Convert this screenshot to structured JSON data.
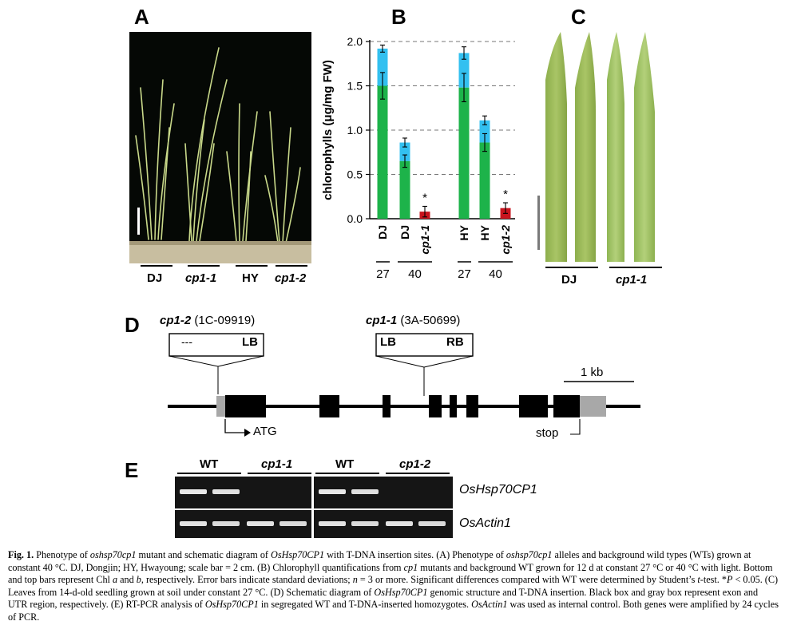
{
  "panels": {
    "a": "A",
    "b": "B",
    "c": "C",
    "d": "D",
    "e": "E"
  },
  "panelA": {
    "groups": [
      "DJ",
      "cp1-1",
      "HY",
      "cp1-2"
    ]
  },
  "chart_data": {
    "type": "bar",
    "ylabel": "chlorophylls (μg/mg FW)",
    "ylim": [
      0,
      2.0
    ],
    "yticks": [
      "0.0",
      "0.5",
      "1.0",
      "1.5",
      "2.0"
    ],
    "grid": "dashed horizontal",
    "categories": [
      "DJ",
      "DJ",
      "cp1-1",
      "HY",
      "HY",
      "cp1-2"
    ],
    "temperature_groups": [
      {
        "label": "27",
        "members": [
          0
        ]
      },
      {
        "label": "40",
        "members": [
          1,
          2
        ]
      },
      {
        "label": "27",
        "members": [
          3
        ]
      },
      {
        "label": "40",
        "members": [
          4,
          5
        ]
      }
    ],
    "series": [
      {
        "name": "Chl a",
        "color": "#1db34a",
        "values": [
          1.5,
          0.65,
          0.08,
          1.48,
          0.86,
          0.12
        ],
        "err": [
          0.15,
          0.07,
          0.06,
          0.16,
          0.1,
          0.06
        ]
      },
      {
        "name": "Chl a+b",
        "color": "#33c0f0",
        "values": [
          1.92,
          0.86,
          0.08,
          1.87,
          1.11,
          0.12
        ],
        "err": [
          0.04,
          0.05,
          0.0,
          0.07,
          0.05,
          0.0
        ]
      }
    ],
    "significance": [
      "",
      "",
      "*",
      "",
      "",
      "*"
    ],
    "mutant_color": "#c8141e"
  },
  "panelC": {
    "groups": [
      "DJ",
      "cp1-1"
    ]
  },
  "panelD": {
    "left_insert": {
      "allele": "cp1-2",
      "id": "(1C-09919)",
      "left": "---",
      "right": "LB"
    },
    "right_insert": {
      "allele": "cp1-1",
      "id": "(3A-50699)",
      "left": "LB",
      "right": "RB"
    },
    "scale": "1 kb",
    "atg": "ATG",
    "stop": "stop"
  },
  "panelE": {
    "headers": [
      "WT",
      "cp1-1",
      "WT",
      "cp1-2"
    ],
    "genes": [
      "OsHsp70CP1",
      "OsActin1"
    ]
  },
  "caption": {
    "fig": "Fig. 1.",
    "parts": [
      {
        "t": " Phenotype of ",
        "i": false
      },
      {
        "t": "oshsp70cp1",
        "i": true
      },
      {
        "t": " mutant and schematic diagram of ",
        "i": false
      },
      {
        "t": "OsHsp70CP1",
        "i": true
      },
      {
        "t": " with T-DNA insertion sites. (A) Phenotype of ",
        "i": false
      },
      {
        "t": "oshsp70cp1",
        "i": true
      },
      {
        "t": " alleles and background wild types (WTs) grown at constant 40 °C. DJ, Dongjin; HY, Hwayoung; scale bar = 2 cm. (B) Chlorophyll quantifications from ",
        "i": false
      },
      {
        "t": "cp1",
        "i": true
      },
      {
        "t": " mutants and background WT grown for 12 d at constant 27 °C or 40 °C with light. Bottom and top bars represent Chl ",
        "i": false
      },
      {
        "t": "a",
        "i": true
      },
      {
        "t": " and ",
        "i": false
      },
      {
        "t": "b",
        "i": true
      },
      {
        "t": ", respectively. Error bars indicate standard deviations; ",
        "i": false
      },
      {
        "t": "n",
        "i": true
      },
      {
        "t": " = 3 or more. Significant differences compared with WT were determined by Student’s ",
        "i": false
      },
      {
        "t": "t",
        "i": true
      },
      {
        "t": "-test. *",
        "i": false
      },
      {
        "t": "P",
        "i": true
      },
      {
        "t": " < 0.05. (C) Leaves from 14-d-old seedling grown at soil under constant 27 °C. (D) Schematic diagram of ",
        "i": false
      },
      {
        "t": "OsHsp70CP1",
        "i": true
      },
      {
        "t": " genomic structure and T-DNA insertion. Black box and gray box represent exon and UTR region, respectively. (E) RT-PCR analysis of ",
        "i": false
      },
      {
        "t": "OsHsp70CP1",
        "i": true
      },
      {
        "t": " in segregated WT and T-DNA-inserted homozygotes. ",
        "i": false
      },
      {
        "t": "OsActin1",
        "i": true
      },
      {
        "t": " was used as internal control. Both genes were amplified by 24 cycles of PCR.",
        "i": false
      }
    ]
  }
}
